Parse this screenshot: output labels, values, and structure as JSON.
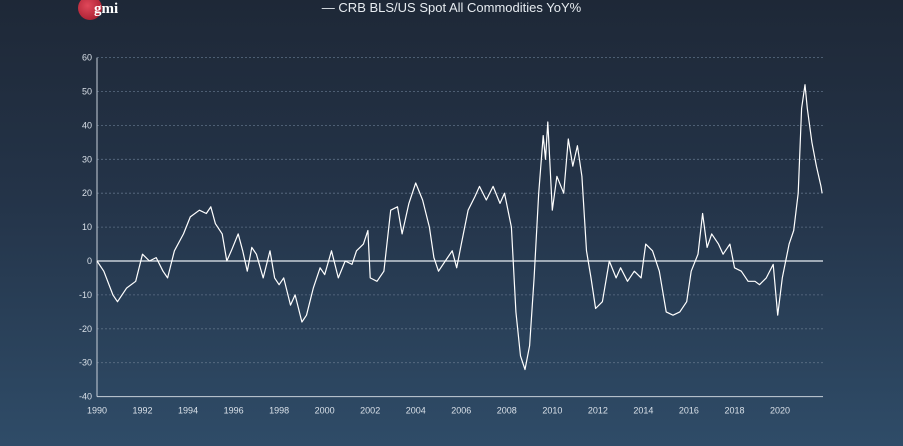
{
  "logo": {
    "text": "gmi"
  },
  "chart_data": {
    "type": "line",
    "title": "CRB BLS/US Spot All Commodities YoY%",
    "legend": "top-center",
    "xlabel": "",
    "ylabel": "",
    "xlim": [
      1990,
      2022
    ],
    "ylim": [
      -40,
      60
    ],
    "yticks": [
      60,
      50,
      40,
      30,
      20,
      10,
      0,
      -10,
      -20,
      -30,
      -40
    ],
    "xticks": [
      1990,
      1992,
      1994,
      1996,
      1998,
      2000,
      2002,
      2004,
      2006,
      2008,
      2010,
      2012,
      2014,
      2016,
      2018,
      2020
    ],
    "grid": "horizontal dashed",
    "series": [
      {
        "name": "CRB BLS/US Spot All Commodities YoY%",
        "color": "#ffffff",
        "x": [
          1990.0,
          1990.3,
          1990.7,
          1990.9,
          1991.3,
          1991.7,
          1992.0,
          1992.3,
          1992.6,
          1992.9,
          1993.1,
          1993.4,
          1993.8,
          1994.1,
          1994.5,
          1994.8,
          1995.0,
          1995.2,
          1995.5,
          1995.7,
          1995.9,
          1996.2,
          1996.4,
          1996.6,
          1996.8,
          1997.0,
          1997.3,
          1997.6,
          1997.8,
          1998.0,
          1998.2,
          1998.5,
          1998.7,
          1999.0,
          1999.2,
          1999.5,
          1999.8,
          2000.0,
          2000.3,
          2000.6,
          2000.9,
          2001.2,
          2001.4,
          2001.7,
          2001.9,
          2002.0,
          2002.3,
          2002.6,
          2002.9,
          2003.2,
          2003.4,
          2003.7,
          2004.0,
          2004.3,
          2004.6,
          2004.8,
          2005.0,
          2005.3,
          2005.6,
          2005.8,
          2006.0,
          2006.3,
          2006.6,
          2006.8,
          2007.1,
          2007.4,
          2007.7,
          2007.9,
          2008.2,
          2008.4,
          2008.6,
          2008.8,
          2009.0,
          2009.2,
          2009.4,
          2009.6,
          2009.7,
          2009.8,
          2010.0,
          2010.2,
          2010.5,
          2010.7,
          2010.9,
          2011.1,
          2011.3,
          2011.5,
          2011.7,
          2011.9,
          2012.2,
          2012.5,
          2012.8,
          2013.0,
          2013.3,
          2013.6,
          2013.9,
          2014.1,
          2014.4,
          2014.7,
          2015.0,
          2015.3,
          2015.6,
          2015.9,
          2016.1,
          2016.4,
          2016.6,
          2016.8,
          2017.0,
          2017.3,
          2017.5,
          2017.8,
          2018.0,
          2018.3,
          2018.6,
          2018.9,
          2019.1,
          2019.4,
          2019.7,
          2019.9,
          2020.1,
          2020.4,
          2020.6,
          2020.8,
          2020.95,
          2021.1,
          2021.2,
          2021.4,
          2021.6,
          2021.8,
          2021.85
        ],
        "y": [
          0,
          -3,
          -10,
          -12,
          -8,
          -6,
          2,
          0,
          1,
          -3,
          -5,
          3,
          8,
          13,
          15,
          14,
          16,
          11,
          8,
          0,
          3,
          8,
          3,
          -3,
          4,
          2,
          -5,
          3,
          -5,
          -7,
          -5,
          -13,
          -10,
          -18,
          -16,
          -8,
          -2,
          -4,
          3,
          -5,
          0,
          -1,
          3,
          5,
          9,
          -5,
          -6,
          -3,
          15,
          16,
          8,
          17,
          23,
          18,
          10,
          1,
          -3,
          0,
          3,
          -2,
          5,
          15,
          19,
          22,
          18,
          22,
          17,
          20,
          10,
          -15,
          -28,
          -32,
          -25,
          -5,
          20,
          37,
          30,
          41,
          15,
          25,
          20,
          36,
          28,
          34,
          25,
          3,
          -5,
          -14,
          -12,
          0,
          -5,
          -2,
          -6,
          -3,
          -5,
          5,
          3,
          -3,
          -15,
          -16,
          -15,
          -12,
          -3,
          2,
          14,
          4,
          8,
          5,
          2,
          5,
          -2,
          -3,
          -6,
          -6,
          -7,
          -5,
          -1,
          -16,
          -5,
          5,
          9,
          20,
          45,
          52,
          45,
          35,
          28,
          22,
          20
        ]
      }
    ]
  }
}
